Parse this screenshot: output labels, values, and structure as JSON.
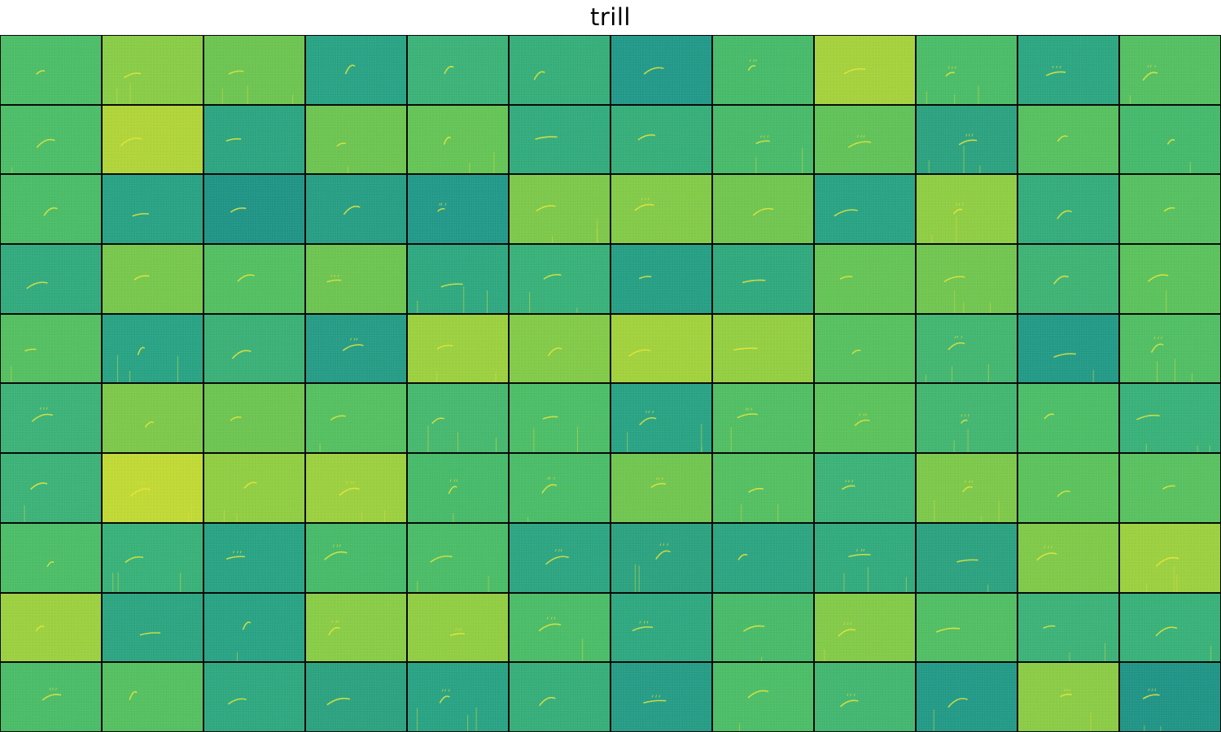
{
  "figure": {
    "title": "trill"
  },
  "grid": {
    "rows": 10,
    "cols": 12,
    "palette": [
      "#219a8a",
      "#26a38a",
      "#36b07a",
      "#4cbd6a",
      "#66c558",
      "#8ccc48",
      "#aed43c",
      "#c9dc36"
    ],
    "colors": [
      "#4dbe6a",
      "#8acd49",
      "#6ec553",
      "#2aa487",
      "#3db37a",
      "#37af7c",
      "#239a8b",
      "#48bb6c",
      "#a6d23f",
      "#4cbd6a",
      "#2ea783",
      "#55c064",
      "#4dbe6a",
      "#b1d53b",
      "#2ea683",
      "#6ec553",
      "#66c558",
      "#34ac7f",
      "#37af7c",
      "#49bb6c",
      "#62c35b",
      "#2da382",
      "#58c162",
      "#46ba6e",
      "#4cbd6a",
      "#2aa386",
      "#219588",
      "#289f86",
      "#239a8b",
      "#7ec94d",
      "#84cb4b",
      "#72c652",
      "#2aa486",
      "#90ce46",
      "#35ad7d",
      "#57c163",
      "#33ab80",
      "#78c84f",
      "#54c064",
      "#6ec553",
      "#30a982",
      "#3ab27b",
      "#27a087",
      "#31aa80",
      "#66c558",
      "#72c652",
      "#40b476",
      "#5cc35e",
      "#55c064",
      "#2aa486",
      "#3cb179",
      "#279d88",
      "#9dd142",
      "#84cb4b",
      "#a3d23f",
      "#94cf44",
      "#58c162",
      "#44b773",
      "#249b89",
      "#52bf66",
      "#3db37a",
      "#7ec94d",
      "#6ec553",
      "#56c163",
      "#47b971",
      "#4dbe6a",
      "#2aa486",
      "#52bf66",
      "#5cc35e",
      "#44b773",
      "#4dbe6a",
      "#3ab27b",
      "#3db37a",
      "#c2da37",
      "#92ce45",
      "#9dd142",
      "#48bb6c",
      "#4cbd6a",
      "#72c652",
      "#55c064",
      "#3db37a",
      "#7ec94d",
      "#5cc35e",
      "#5ac262",
      "#4dbe6a",
      "#3ab27b",
      "#2aa486",
      "#48bb6c",
      "#4cbd6a",
      "#2ea683",
      "#2da382",
      "#2ea683",
      "#33ab80",
      "#2da382",
      "#80ca4c",
      "#9dd142",
      "#9dd142",
      "#2ea683",
      "#2aa486",
      "#8acd49",
      "#92ce45",
      "#4cbd6a",
      "#30a982",
      "#49bb6c",
      "#84cb4b",
      "#52bf66",
      "#3db37a",
      "#3ab27b",
      "#4cbd6a",
      "#56c163",
      "#30a982",
      "#2da382",
      "#2aa486",
      "#37af7c",
      "#279d88",
      "#4dbe6a",
      "#44b773",
      "#249b89",
      "#8ccc48",
      "#219588"
    ]
  }
}
